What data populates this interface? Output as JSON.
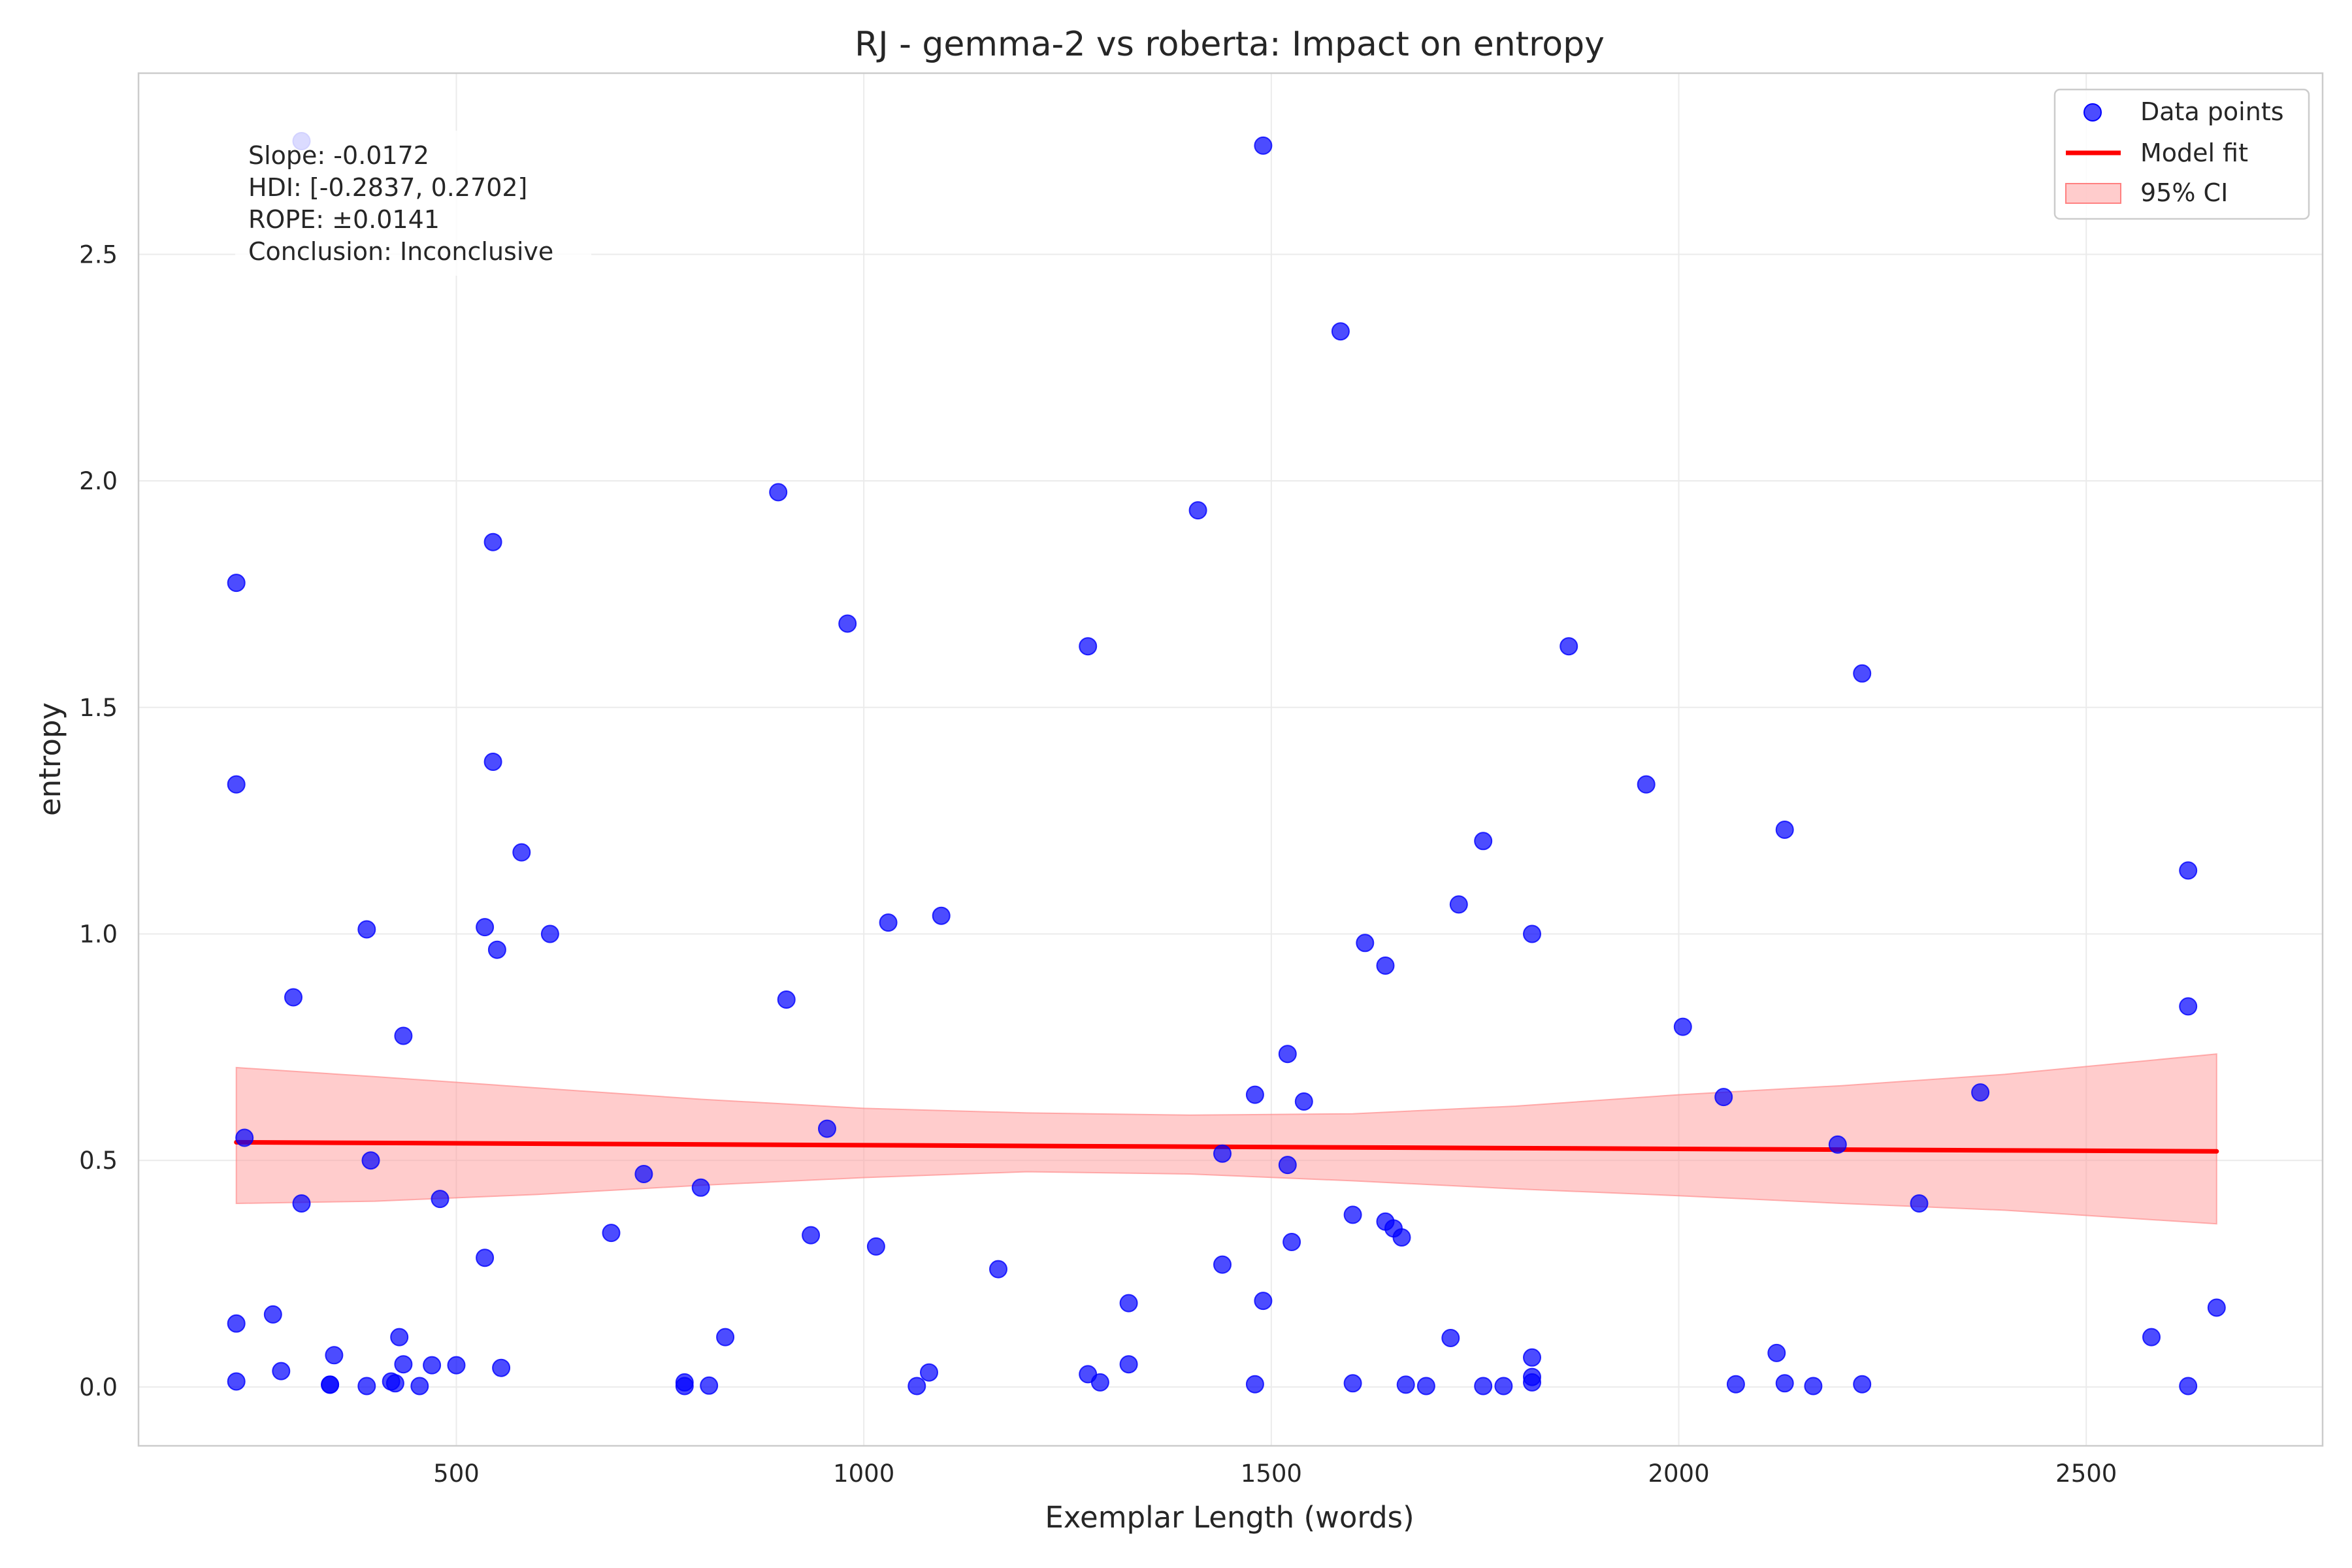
{
  "chart_data": {
    "type": "scatter",
    "title": "RJ - gemma-2 vs roberta: Impact on entropy",
    "xlabel": "Exemplar Length (words)",
    "ylabel": "entropy",
    "xlim": [
      110,
      2790
    ],
    "ylim": [
      -0.13,
      2.9
    ],
    "xticks": [
      500,
      1000,
      1500,
      2000,
      2500
    ],
    "yticks": [
      0.0,
      0.5,
      1.0,
      1.5,
      2.0,
      2.5
    ],
    "grid": true,
    "legend_position": "top-right",
    "legend": [
      "Data points",
      "Model fit",
      "95% CI"
    ],
    "annotation": [
      "Slope: -0.0172",
      "HDI: [-0.2837, 0.2702]",
      "ROPE: ±0.0141",
      "Conclusion: Inconclusive"
    ],
    "colors": {
      "points": "#0000ff",
      "fit": "#ff0000",
      "ci": "#ff9999"
    },
    "series": [
      {
        "name": "Data points",
        "points": [
          [
            230,
            1.775
          ],
          [
            230,
            1.33
          ],
          [
            230,
            0.14
          ],
          [
            230,
            0.012
          ],
          [
            240,
            0.55
          ],
          [
            275,
            0.16
          ],
          [
            285,
            0.035
          ],
          [
            300,
            0.86
          ],
          [
            310,
            0.405
          ],
          [
            310,
            2.75
          ],
          [
            345,
            0.005
          ],
          [
            345,
            0.005
          ],
          [
            350,
            0.07
          ],
          [
            390,
            1.01
          ],
          [
            390,
            0.002
          ],
          [
            395,
            0.5
          ],
          [
            420,
            0.012
          ],
          [
            425,
            0.008
          ],
          [
            430,
            0.11
          ],
          [
            435,
            0.775
          ],
          [
            435,
            0.05
          ],
          [
            455,
            0.002
          ],
          [
            470,
            0.048
          ],
          [
            480,
            0.415
          ],
          [
            500,
            0.048
          ],
          [
            535,
            1.015
          ],
          [
            535,
            0.285
          ],
          [
            545,
            1.865
          ],
          [
            545,
            1.38
          ],
          [
            550,
            0.965
          ],
          [
            555,
            0.042
          ],
          [
            580,
            1.18
          ],
          [
            615,
            1.0
          ],
          [
            690,
            0.34
          ],
          [
            730,
            0.47
          ],
          [
            780,
            0.01
          ],
          [
            780,
            0.002
          ],
          [
            800,
            0.44
          ],
          [
            810,
            0.003
          ],
          [
            830,
            0.11
          ],
          [
            895,
            1.975
          ],
          [
            905,
            0.855
          ],
          [
            935,
            0.335
          ],
          [
            955,
            0.57
          ],
          [
            980,
            1.685
          ],
          [
            1015,
            0.31
          ],
          [
            1030,
            1.025
          ],
          [
            1065,
            0.002
          ],
          [
            1080,
            0.032
          ],
          [
            1095,
            1.04
          ],
          [
            1165,
            0.26
          ],
          [
            1275,
            1.635
          ],
          [
            1275,
            0.028
          ],
          [
            1290,
            0.01
          ],
          [
            1325,
            0.185
          ],
          [
            1325,
            0.05
          ],
          [
            1410,
            1.935
          ],
          [
            1440,
            0.27
          ],
          [
            1440,
            0.515
          ],
          [
            1480,
            0.645
          ],
          [
            1480,
            0.006
          ],
          [
            1490,
            2.74
          ],
          [
            1490,
            0.19
          ],
          [
            1520,
            0.735
          ],
          [
            1520,
            0.49
          ],
          [
            1525,
            0.32
          ],
          [
            1540,
            0.63
          ],
          [
            1585,
            2.33
          ],
          [
            1600,
            0.38
          ],
          [
            1600,
            0.008
          ],
          [
            1615,
            0.98
          ],
          [
            1640,
            0.93
          ],
          [
            1640,
            0.365
          ],
          [
            1650,
            0.35
          ],
          [
            1660,
            0.33
          ],
          [
            1665,
            0.005
          ],
          [
            1690,
            0.002
          ],
          [
            1720,
            0.108
          ],
          [
            1730,
            1.065
          ],
          [
            1760,
            1.205
          ],
          [
            1760,
            0.002
          ],
          [
            1785,
            0.002
          ],
          [
            1820,
            1.0
          ],
          [
            1820,
            0.065
          ],
          [
            1820,
            0.022
          ],
          [
            1820,
            0.01
          ],
          [
            1865,
            1.635
          ],
          [
            1960,
            1.33
          ],
          [
            2005,
            0.795
          ],
          [
            2055,
            0.64
          ],
          [
            2070,
            0.006
          ],
          [
            2120,
            0.075
          ],
          [
            2130,
            1.23
          ],
          [
            2130,
            0.008
          ],
          [
            2165,
            0.002
          ],
          [
            2195,
            0.535
          ],
          [
            2225,
            1.575
          ],
          [
            2225,
            0.006
          ],
          [
            2295,
            0.405
          ],
          [
            2370,
            0.65
          ],
          [
            2580,
            0.11
          ],
          [
            2625,
            1.14
          ],
          [
            2625,
            0.84
          ],
          [
            2625,
            0.002
          ],
          [
            2660,
            0.175
          ]
        ]
      },
      {
        "name": "Model fit",
        "x": [
          230,
          2660
        ],
        "y": [
          0.54,
          0.52
        ]
      },
      {
        "name": "95% CI",
        "x": [
          230,
          400,
          600,
          800,
          1000,
          1200,
          1400,
          1600,
          1800,
          2000,
          2200,
          2400,
          2660
        ],
        "upper": [
          0.705,
          0.685,
          0.66,
          0.635,
          0.615,
          0.605,
          0.6,
          0.603,
          0.62,
          0.645,
          0.665,
          0.69,
          0.735
        ],
        "lower": [
          0.405,
          0.41,
          0.425,
          0.445,
          0.462,
          0.475,
          0.47,
          0.455,
          0.437,
          0.422,
          0.405,
          0.39,
          0.36
        ]
      }
    ]
  }
}
